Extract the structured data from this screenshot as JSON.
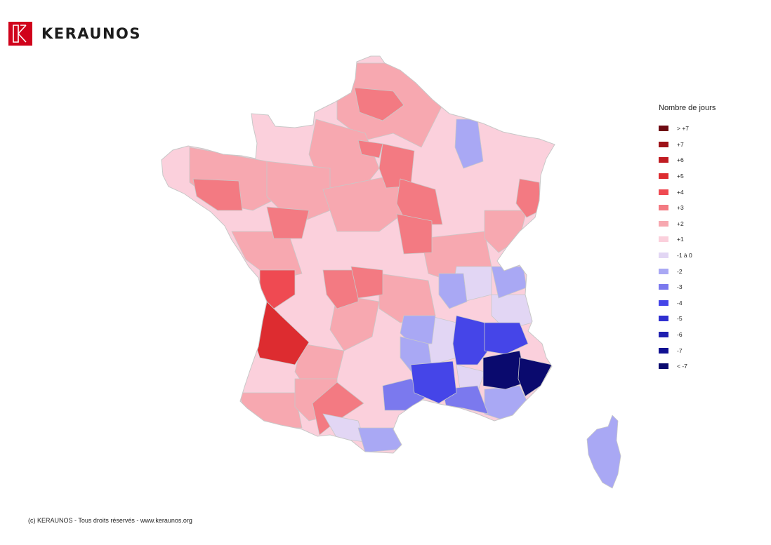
{
  "brand": {
    "name": "KERAUNOS",
    "color": "#d0021b"
  },
  "legend": {
    "title": "Nombre de jours",
    "items": [
      {
        "label": "> +7",
        "color": "#6e0a12"
      },
      {
        "label": "+7",
        "color": "#9e1218"
      },
      {
        "label": "+6",
        "color": "#c01c22"
      },
      {
        "label": "+5",
        "color": "#dd2c30"
      },
      {
        "label": "+4",
        "color": "#ef4a52"
      },
      {
        "label": "+3",
        "color": "#f37a82"
      },
      {
        "label": "+2",
        "color": "#f7a8b0"
      },
      {
        "label": "+1",
        "color": "#fbd0dc"
      },
      {
        "label": "-1 à 0",
        "color": "#e2d6f4"
      },
      {
        "label": "-2",
        "color": "#a9a8f4"
      },
      {
        "label": "-3",
        "color": "#7b79ee"
      },
      {
        "label": "-4",
        "color": "#4545e8"
      },
      {
        "label": "-5",
        "color": "#2f2fd0"
      },
      {
        "label": "-6",
        "color": "#2020b0"
      },
      {
        "label": "-7",
        "color": "#111192"
      },
      {
        "label": "< -7",
        "color": "#0a0a6e"
      }
    ]
  },
  "footer": {
    "copyright": "(c) KERAUNOS - Tous droits réservés - www.keraunos.org"
  }
}
